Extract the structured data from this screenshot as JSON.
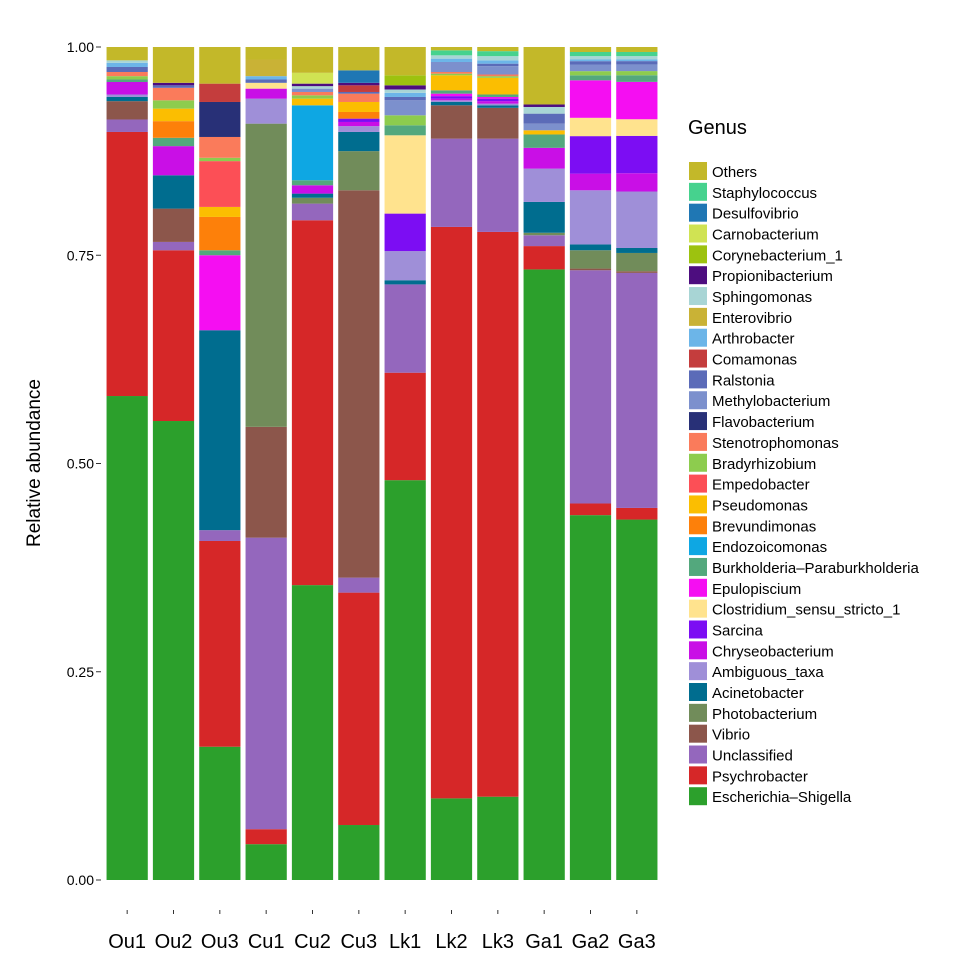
{
  "chart_data": {
    "type": "bar",
    "stacked": true,
    "ylabel": "Relative abundance",
    "ylim": [
      0,
      1
    ],
    "y_ticks": [
      "0.00",
      "0.25",
      "0.50",
      "0.75",
      "1.00"
    ],
    "y_tick_values": [
      0,
      0.25,
      0.5,
      0.75,
      1.0
    ],
    "grid": false,
    "legend_title": "Genus",
    "legend_position": "right",
    "categories": [
      "Ou1",
      "Ou2",
      "Ou3",
      "Cu1",
      "Cu2",
      "Cu3",
      "Lk1",
      "Lk2",
      "Lk3",
      "Ga1",
      "Ga2",
      "Ga3"
    ],
    "series": [
      {
        "name": "Escherichia–Shigella",
        "color": "#2ca02c",
        "values": [
          0.581,
          0.551,
          0.16,
          0.043,
          0.354,
          0.066,
          0.48,
          0.098,
          0.1,
          0.733,
          0.438,
          0.434
        ]
      },
      {
        "name": "Psychrobacter",
        "color": "#d62728",
        "values": [
          0.317,
          0.205,
          0.247,
          0.018,
          0.438,
          0.279,
          0.129,
          0.686,
          0.678,
          0.028,
          0.014,
          0.014
        ]
      },
      {
        "name": "Unclassified",
        "color": "#9467bd",
        "values": [
          0.015,
          0.01,
          0.013,
          0.35,
          0.02,
          0.018,
          0.106,
          0.106,
          0.112,
          0.013,
          0.28,
          0.283
        ]
      },
      {
        "name": "Vibrio",
        "color": "#8c564b",
        "values": [
          0.022,
          0.04,
          0.0,
          0.133,
          0.0,
          0.465,
          0.0,
          0.04,
          0.037,
          0.0,
          0.002,
          0.002
        ]
      },
      {
        "name": "Photobacterium",
        "color": "#718c5a",
        "values": [
          0.0,
          0.0,
          0.0,
          0.364,
          0.007,
          0.047,
          0.0,
          0.0,
          0.0,
          0.003,
          0.022,
          0.022
        ]
      },
      {
        "name": "Acinetobacter",
        "color": "#006d8f",
        "values": [
          0.005,
          0.04,
          0.24,
          0.0,
          0.005,
          0.023,
          0.005,
          0.004,
          0.003,
          0.037,
          0.007,
          0.006
        ]
      },
      {
        "name": "Ambiguous_taxa",
        "color": "#9f8fd8",
        "values": [
          0.003,
          0.0,
          0.0,
          0.03,
          0.0,
          0.007,
          0.035,
          0.002,
          0.002,
          0.04,
          0.065,
          0.068
        ]
      },
      {
        "name": "Chryseobacterium",
        "color": "#c90fe6",
        "values": [
          0.015,
          0.035,
          0.0,
          0.012,
          0.01,
          0.005,
          0.0,
          0.002,
          0.003,
          0.025,
          0.02,
          0.022
        ]
      },
      {
        "name": "Sarcina",
        "color": "#7c0df3",
        "values": [
          0.0,
          0.0,
          0.0,
          0.0,
          0.0,
          0.004,
          0.045,
          0.003,
          0.003,
          0.0,
          0.045,
          0.045
        ]
      },
      {
        "name": "Clostridium_sensu_stricto_1",
        "color": "#ffe38e",
        "values": [
          0.0,
          0.0,
          0.0,
          0.007,
          0.0,
          0.0,
          0.094,
          0.0,
          0.0,
          0.0,
          0.022,
          0.02
        ]
      },
      {
        "name": "Epulopiscium",
        "color": "#f50ef2",
        "values": [
          0.0,
          0.0,
          0.09,
          0.0,
          0.0,
          0.0,
          0.0,
          0.003,
          0.002,
          0.0,
          0.045,
          0.045
        ]
      },
      {
        "name": "Burkholderia–Paraburkholderia",
        "color": "#53a87d",
        "values": [
          0.003,
          0.01,
          0.006,
          0.0,
          0.006,
          0.0,
          0.012,
          0.004,
          0.003,
          0.016,
          0.006,
          0.008
        ]
      },
      {
        "name": "Endozoicomonas",
        "color": "#0ea7e3",
        "values": [
          0.0,
          0.0,
          0.0,
          0.0,
          0.09,
          0.0,
          0.0,
          0.0,
          0.0,
          0.0,
          0.0,
          0.0
        ]
      },
      {
        "name": "Brevundimonas",
        "color": "#fd800a",
        "values": [
          0.0,
          0.02,
          0.04,
          0.0,
          0.0,
          0.008,
          0.0,
          0.0,
          0.0,
          0.0,
          0.0,
          0.0
        ]
      },
      {
        "name": "Pseudomonas",
        "color": "#fbbe01",
        "values": [
          0.0,
          0.015,
          0.012,
          0.0,
          0.008,
          0.012,
          0.0,
          0.018,
          0.02,
          0.005,
          0.0,
          0.0
        ]
      },
      {
        "name": "Empedobacter",
        "color": "#fc4f56",
        "values": [
          0.0,
          0.0,
          0.055,
          0.0,
          0.0,
          0.0,
          0.0,
          0.0,
          0.0,
          0.0,
          0.0,
          0.0
        ]
      },
      {
        "name": "Bradyrhizobium",
        "color": "#8dcc4e",
        "values": [
          0.004,
          0.01,
          0.004,
          0.0,
          0.004,
          0.0,
          0.012,
          0.002,
          0.002,
          0.0,
          0.005,
          0.005
        ]
      },
      {
        "name": "Stenotrophomonas",
        "color": "#fa7b5b",
        "values": [
          0.005,
          0.015,
          0.025,
          0.0,
          0.004,
          0.01,
          0.0,
          0.002,
          0.002,
          0.0,
          0.0,
          0.0
        ]
      },
      {
        "name": "Flavobacterium",
        "color": "#283077",
        "values": [
          0.0,
          0.0,
          0.042,
          0.0,
          0.0,
          0.0,
          0.0,
          0.0,
          0.0,
          0.0,
          0.0,
          0.0
        ]
      },
      {
        "name": "Methylobacterium",
        "color": "#7c90cd",
        "values": [
          0.0,
          0.0,
          0.0,
          0.0,
          0.004,
          0.0,
          0.018,
          0.012,
          0.01,
          0.008,
          0.008,
          0.008
        ]
      },
      {
        "name": "Ralstonia",
        "color": "#5b6bb8",
        "values": [
          0.006,
          0.003,
          0.0,
          0.004,
          0.0,
          0.002,
          0.004,
          0.0,
          0.003,
          0.012,
          0.004,
          0.004
        ]
      },
      {
        "name": "Comamonas",
        "color": "#c43d3d",
        "values": [
          0.0,
          0.0,
          0.022,
          0.0,
          0.0,
          0.008,
          0.0,
          0.0,
          0.0,
          0.0,
          0.0,
          0.0
        ]
      },
      {
        "name": "Arthrobacter",
        "color": "#6cb5e8",
        "values": [
          0.005,
          0.0,
          0.0,
          0.004,
          0.0,
          0.0,
          0.005,
          0.004,
          0.004,
          0.0,
          0.002,
          0.002
        ]
      },
      {
        "name": "Enterovibrio",
        "color": "#c9b236",
        "values": [
          0.0,
          0.0,
          0.0,
          0.02,
          0.0,
          0.0,
          0.0,
          0.0,
          0.0,
          0.0,
          0.0,
          0.0
        ]
      },
      {
        "name": "Sphingomonas",
        "color": "#a8d5d5",
        "values": [
          0.003,
          0.0,
          0.0,
          0.0,
          0.003,
          0.0,
          0.004,
          0.004,
          0.005,
          0.008,
          0.004,
          0.004
        ]
      },
      {
        "name": "Propionibacterium",
        "color": "#4d0d7f",
        "values": [
          0.0,
          0.003,
          0.0,
          0.0,
          0.003,
          0.003,
          0.005,
          0.0,
          0.0,
          0.003,
          0.0,
          0.0
        ]
      },
      {
        "name": "Corynebacterium_1",
        "color": "#9dc20f",
        "values": [
          0.0,
          0.0,
          0.0,
          0.0,
          0.0,
          0.0,
          0.012,
          0.0,
          0.0,
          0.0,
          0.0,
          0.0
        ]
      },
      {
        "name": "Carnobacterium",
        "color": "#d0e353",
        "values": [
          0.0,
          0.0,
          0.0,
          0.0,
          0.013,
          0.0,
          0.0,
          0.0,
          0.0,
          0.0,
          0.0,
          0.0
        ]
      },
      {
        "name": "Desulfovibrio",
        "color": "#1f77b4",
        "values": [
          0.0,
          0.0,
          0.0,
          0.0,
          0.0,
          0.015,
          0.0,
          0.0,
          0.0,
          0.0,
          0.0,
          0.0
        ]
      },
      {
        "name": "Staphylococcus",
        "color": "#46d28e",
        "values": [
          0.0,
          0.0,
          0.0,
          0.0,
          0.0,
          0.0,
          0.0,
          0.006,
          0.006,
          0.0,
          0.005,
          0.005
        ]
      },
      {
        "name": "Others",
        "color": "#c3b829",
        "values": [
          0.016,
          0.043,
          0.044,
          0.015,
          0.031,
          0.028,
          0.034,
          0.004,
          0.005,
          0.069,
          0.006,
          0.006
        ]
      }
    ]
  }
}
